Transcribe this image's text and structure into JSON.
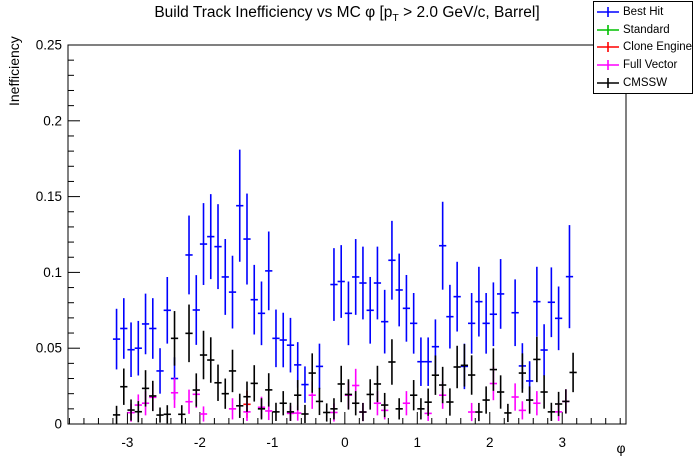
{
  "title": {
    "prefix": "Build Track Inefficiency vs MC φ [p",
    "sub": "T",
    "suffix": " > 2.0 GeV/c, Barrel]"
  },
  "legend": {
    "entries": [
      {
        "label": "Best Hit",
        "color": "#0000ff"
      },
      {
        "label": "Standard",
        "color": "#00c000"
      },
      {
        "label": "Clone Engine",
        "color": "#ff0000"
      },
      {
        "label": "Full Vector",
        "color": "#ff00ff"
      },
      {
        "label": "CMSSW",
        "color": "#000000"
      }
    ]
  },
  "chart_data": {
    "type": "scatter",
    "title": "Build Track Inefficiency vs MC φ [p_T > 2.0 GeV/c, Barrel]",
    "xlabel": "φ",
    "ylabel": "Inefficiency",
    "xlim": [
      -3.82,
      3.88
    ],
    "ylim": [
      0,
      0.25
    ],
    "grid": false,
    "legend_position": "top-right",
    "x_major_ticks": [
      -3,
      -2,
      -1,
      0,
      1,
      2,
      3
    ],
    "x_tick_labels": [
      "-3",
      "-2",
      "-1",
      "0",
      "1",
      "2",
      "3"
    ],
    "x_minor_step": 0.2,
    "y_major_ticks": [
      0,
      0.05,
      0.1,
      0.15,
      0.2,
      0.25
    ],
    "y_tick_labels": [
      "0",
      "0.05",
      "0.1",
      "0.15",
      "0.2",
      "0.25"
    ],
    "y_minor_step": 0.01,
    "marker_halfwidth_units": 0.05,
    "series": [
      {
        "name": "Best Hit",
        "color": "#0000ff",
        "points": [
          [
            -3.15,
            0.056,
            0.02
          ],
          [
            -3.05,
            0.063,
            0.02
          ],
          [
            -2.95,
            0.049,
            0.018
          ],
          [
            -2.85,
            0.05,
            0.018
          ],
          [
            -2.75,
            0.066,
            0.02
          ],
          [
            -2.65,
            0.063,
            0.02
          ],
          [
            -2.55,
            0.035,
            0.015
          ],
          [
            -2.45,
            0.075,
            0.022
          ],
          [
            -2.35,
            0.03,
            0.014
          ],
          [
            -2.15,
            0.1115,
            0.026
          ],
          [
            -2.05,
            0.0752,
            0.023
          ],
          [
            -1.95,
            0.1187,
            0.027
          ],
          [
            -1.85,
            0.1236,
            0.028
          ],
          [
            -1.75,
            0.117,
            0.028
          ],
          [
            -1.65,
            0.097,
            0.025
          ],
          [
            -1.55,
            0.087,
            0.024
          ],
          [
            -1.45,
            0.144,
            0.037
          ],
          [
            -1.35,
            0.122,
            0.03
          ],
          [
            -1.25,
            0.082,
            0.023
          ],
          [
            -1.15,
            0.073,
            0.021
          ],
          [
            -1.05,
            0.101,
            0.026
          ],
          [
            -0.95,
            0.0565,
            0.019
          ],
          [
            -0.85,
            0.0554,
            0.018
          ],
          [
            -0.75,
            0.052,
            0.018
          ],
          [
            -0.65,
            0.039,
            0.015
          ],
          [
            -0.55,
            0.026,
            0.012
          ],
          [
            -0.35,
            0.038,
            0.015
          ],
          [
            -0.15,
            0.092,
            0.024
          ],
          [
            -0.05,
            0.094,
            0.024
          ],
          [
            0.05,
            0.073,
            0.021
          ],
          [
            0.15,
            0.097,
            0.025
          ],
          [
            0.25,
            0.093,
            0.024
          ],
          [
            0.35,
            0.075,
            0.022
          ],
          [
            0.45,
            0.093,
            0.024
          ],
          [
            0.55,
            0.0675,
            0.021
          ],
          [
            0.65,
            0.108,
            0.026
          ],
          [
            0.75,
            0.0884,
            0.024
          ],
          [
            0.85,
            0.0763,
            0.022
          ],
          [
            0.95,
            0.0664,
            0.02
          ],
          [
            1.05,
            0.0411,
            0.016
          ],
          [
            1.15,
            0.0411,
            0.016
          ],
          [
            1.25,
            0.051,
            0.018
          ],
          [
            1.35,
            0.1176,
            0.029
          ],
          [
            1.45,
            0.0708,
            0.021
          ],
          [
            1.55,
            0.084,
            0.023
          ],
          [
            1.65,
            0.038,
            0.015
          ],
          [
            1.75,
            0.0664,
            0.02
          ],
          [
            1.85,
            0.0807,
            0.023
          ],
          [
            1.95,
            0.0664,
            0.02
          ],
          [
            2.05,
            0.0724,
            0.021
          ],
          [
            2.15,
            0.0858,
            0.023
          ],
          [
            2.35,
            0.0734,
            0.022
          ],
          [
            2.45,
            0.0383,
            0.015
          ],
          [
            2.55,
            0.0284,
            0.013
          ],
          [
            2.65,
            0.0807,
            0.023
          ],
          [
            2.75,
            0.0488,
            0.017
          ],
          [
            2.85,
            0.0803,
            0.023
          ],
          [
            2.95,
            0.0697,
            0.021
          ],
          [
            3.1,
            0.0972,
            0.034
          ]
        ]
      },
      {
        "name": "Standard",
        "color": "#00c000",
        "points": []
      },
      {
        "name": "Clone Engine",
        "color": "#ff0000",
        "points": [
          [
            -1.35,
            0.013,
            0.009
          ]
        ]
      },
      {
        "name": "Full Vector",
        "color": "#ff00ff",
        "points": [
          [
            -2.95,
            0.0075,
            0.006
          ],
          [
            -2.85,
            0.0125,
            0.007
          ],
          [
            -2.75,
            0.0137,
            0.008
          ],
          [
            -2.65,
            0.0176,
            0.009
          ],
          [
            -2.35,
            0.0206,
            0.01
          ],
          [
            -2.15,
            0.0147,
            0.008
          ],
          [
            -2.05,
            0.0196,
            0.009
          ],
          [
            -1.95,
            0.0066,
            0.005
          ],
          [
            -1.55,
            0.01,
            0.007
          ],
          [
            -1.35,
            0.008,
            0.006
          ],
          [
            -1.15,
            0.011,
            0.007
          ],
          [
            -1.05,
            0.0086,
            0.006
          ],
          [
            -0.75,
            0.007,
            0.005
          ],
          [
            -0.65,
            0.0072,
            0.005
          ],
          [
            -0.45,
            0.019,
            0.009
          ],
          [
            -0.15,
            0.0076,
            0.006
          ],
          [
            0.05,
            0.019,
            0.009
          ],
          [
            0.15,
            0.0254,
            0.011
          ],
          [
            0.25,
            0.0079,
            0.006
          ],
          [
            0.45,
            0.0137,
            0.008
          ],
          [
            0.55,
            0.009,
            0.006
          ],
          [
            0.85,
            0.0137,
            0.008
          ],
          [
            1.15,
            0.007,
            0.005
          ],
          [
            1.35,
            0.019,
            0.009
          ],
          [
            1.75,
            0.0079,
            0.006
          ],
          [
            2.05,
            0.0267,
            0.011
          ],
          [
            2.35,
            0.0178,
            0.009
          ],
          [
            2.45,
            0.009,
            0.006
          ],
          [
            2.65,
            0.0137,
            0.008
          ],
          [
            2.95,
            0.008,
            0.006
          ],
          [
            3.05,
            0.0149,
            0.008
          ]
        ]
      },
      {
        "name": "CMSSW",
        "color": "#000000",
        "points": [
          [
            -3.15,
            0.006,
            0.006
          ],
          [
            -3.05,
            0.0246,
            0.012
          ],
          [
            -2.95,
            0.0092,
            0.007
          ],
          [
            -2.85,
            0.0081,
            0.007
          ],
          [
            -2.75,
            0.0235,
            0.012
          ],
          [
            -2.65,
            0.0185,
            0.01
          ],
          [
            -2.55,
            0.0059,
            0.005
          ],
          [
            -2.45,
            0.0064,
            0.006
          ],
          [
            -2.35,
            0.0565,
            0.018
          ],
          [
            -2.25,
            0.0064,
            0.006
          ],
          [
            -2.15,
            0.0598,
            0.019
          ],
          [
            -2.05,
            0.0224,
            0.011
          ],
          [
            -1.95,
            0.0455,
            0.016
          ],
          [
            -1.85,
            0.0422,
            0.015
          ],
          [
            -1.75,
            0.0272,
            0.012
          ],
          [
            -1.65,
            0.02,
            0.01
          ],
          [
            -1.55,
            0.035,
            0.014
          ],
          [
            -1.45,
            0.012,
            0.008
          ],
          [
            -1.35,
            0.018,
            0.01
          ],
          [
            -1.25,
            0.0268,
            0.012
          ],
          [
            -1.15,
            0.01,
            0.007
          ],
          [
            -1.05,
            0.0225,
            0.011
          ],
          [
            -0.95,
            0.008,
            0.006
          ],
          [
            -0.85,
            0.0137,
            0.008
          ],
          [
            -0.75,
            0.008,
            0.006
          ],
          [
            -0.65,
            0.019,
            0.01
          ],
          [
            -0.55,
            0.0066,
            0.006
          ],
          [
            -0.45,
            0.0336,
            0.013
          ],
          [
            -0.35,
            0.0149,
            0.009
          ],
          [
            -0.25,
            0.0076,
            0.006
          ],
          [
            -0.15,
            0.01,
            0.007
          ],
          [
            -0.05,
            0.0264,
            0.012
          ],
          [
            0.05,
            0.0195,
            0.01
          ],
          [
            0.15,
            0.0137,
            0.008
          ],
          [
            0.25,
            0.0079,
            0.006
          ],
          [
            0.35,
            0.0195,
            0.01
          ],
          [
            0.45,
            0.0264,
            0.012
          ],
          [
            0.55,
            0.0125,
            0.008
          ],
          [
            0.65,
            0.0409,
            0.015
          ],
          [
            0.75,
            0.01,
            0.007
          ],
          [
            0.95,
            0.019,
            0.01
          ],
          [
            1.05,
            0.01,
            0.007
          ],
          [
            1.15,
            0.0144,
            0.009
          ],
          [
            1.25,
            0.0322,
            0.013
          ],
          [
            1.35,
            0.0257,
            0.012
          ],
          [
            1.45,
            0.0145,
            0.009
          ],
          [
            1.55,
            0.0376,
            0.014
          ],
          [
            1.65,
            0.0387,
            0.014
          ],
          [
            1.75,
            0.0323,
            0.013
          ],
          [
            1.85,
            0.0079,
            0.006
          ],
          [
            1.95,
            0.0158,
            0.009
          ],
          [
            2.05,
            0.0359,
            0.014
          ],
          [
            2.15,
            0.0211,
            0.011
          ],
          [
            2.25,
            0.0073,
            0.006
          ],
          [
            2.45,
            0.0336,
            0.013
          ],
          [
            2.55,
            0.0158,
            0.009
          ],
          [
            2.65,
            0.0426,
            0.015
          ],
          [
            2.75,
            0.0211,
            0.011
          ],
          [
            2.85,
            0.008,
            0.006
          ],
          [
            2.95,
            0.0132,
            0.008
          ],
          [
            3.05,
            0.0149,
            0.008
          ],
          [
            3.15,
            0.034,
            0.013
          ]
        ]
      }
    ]
  }
}
